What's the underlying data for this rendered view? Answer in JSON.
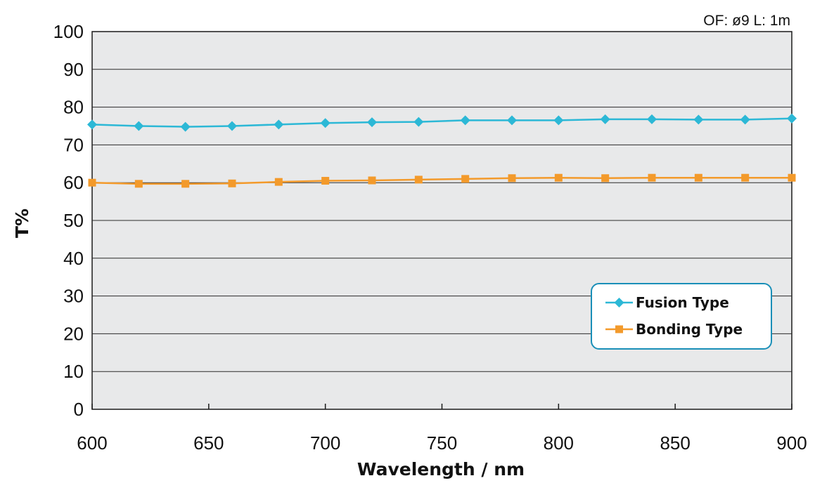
{
  "note": "OF: ø9  L: 1m",
  "chart_data": {
    "type": "line",
    "xlabel": "Wavelength / nm",
    "ylabel": "T%",
    "xlim": [
      600,
      900
    ],
    "ylim": [
      0,
      100
    ],
    "xticks": [
      "600",
      "650",
      "700",
      "750",
      "800",
      "850",
      "900"
    ],
    "yticks": [
      "0",
      "10",
      "20",
      "30",
      "40",
      "50",
      "60",
      "70",
      "80",
      "90",
      "100"
    ],
    "grid": "horizontal",
    "legend_position": "lower-right",
    "x": [
      600,
      620,
      640,
      660,
      680,
      700,
      720,
      740,
      760,
      780,
      800,
      820,
      840,
      860,
      880,
      900
    ],
    "series": [
      {
        "name": "Fusion Type",
        "marker": "diamond",
        "color": "#2cb8d6",
        "values": [
          75.4,
          75.0,
          74.8,
          75.0,
          75.4,
          75.8,
          76.0,
          76.1,
          76.5,
          76.5,
          76.5,
          76.8,
          76.8,
          76.7,
          76.7,
          77.0
        ]
      },
      {
        "name": "Bonding Type",
        "marker": "square",
        "color": "#f39a2b",
        "values": [
          60.0,
          59.7,
          59.7,
          59.8,
          60.2,
          60.5,
          60.6,
          60.8,
          61.0,
          61.2,
          61.3,
          61.2,
          61.3,
          61.3,
          61.3,
          61.3
        ]
      }
    ]
  },
  "colors": {
    "plot_background": "#e8e9ea",
    "grid": "#2a2a2a",
    "legend_border": "#1a8fb8"
  }
}
